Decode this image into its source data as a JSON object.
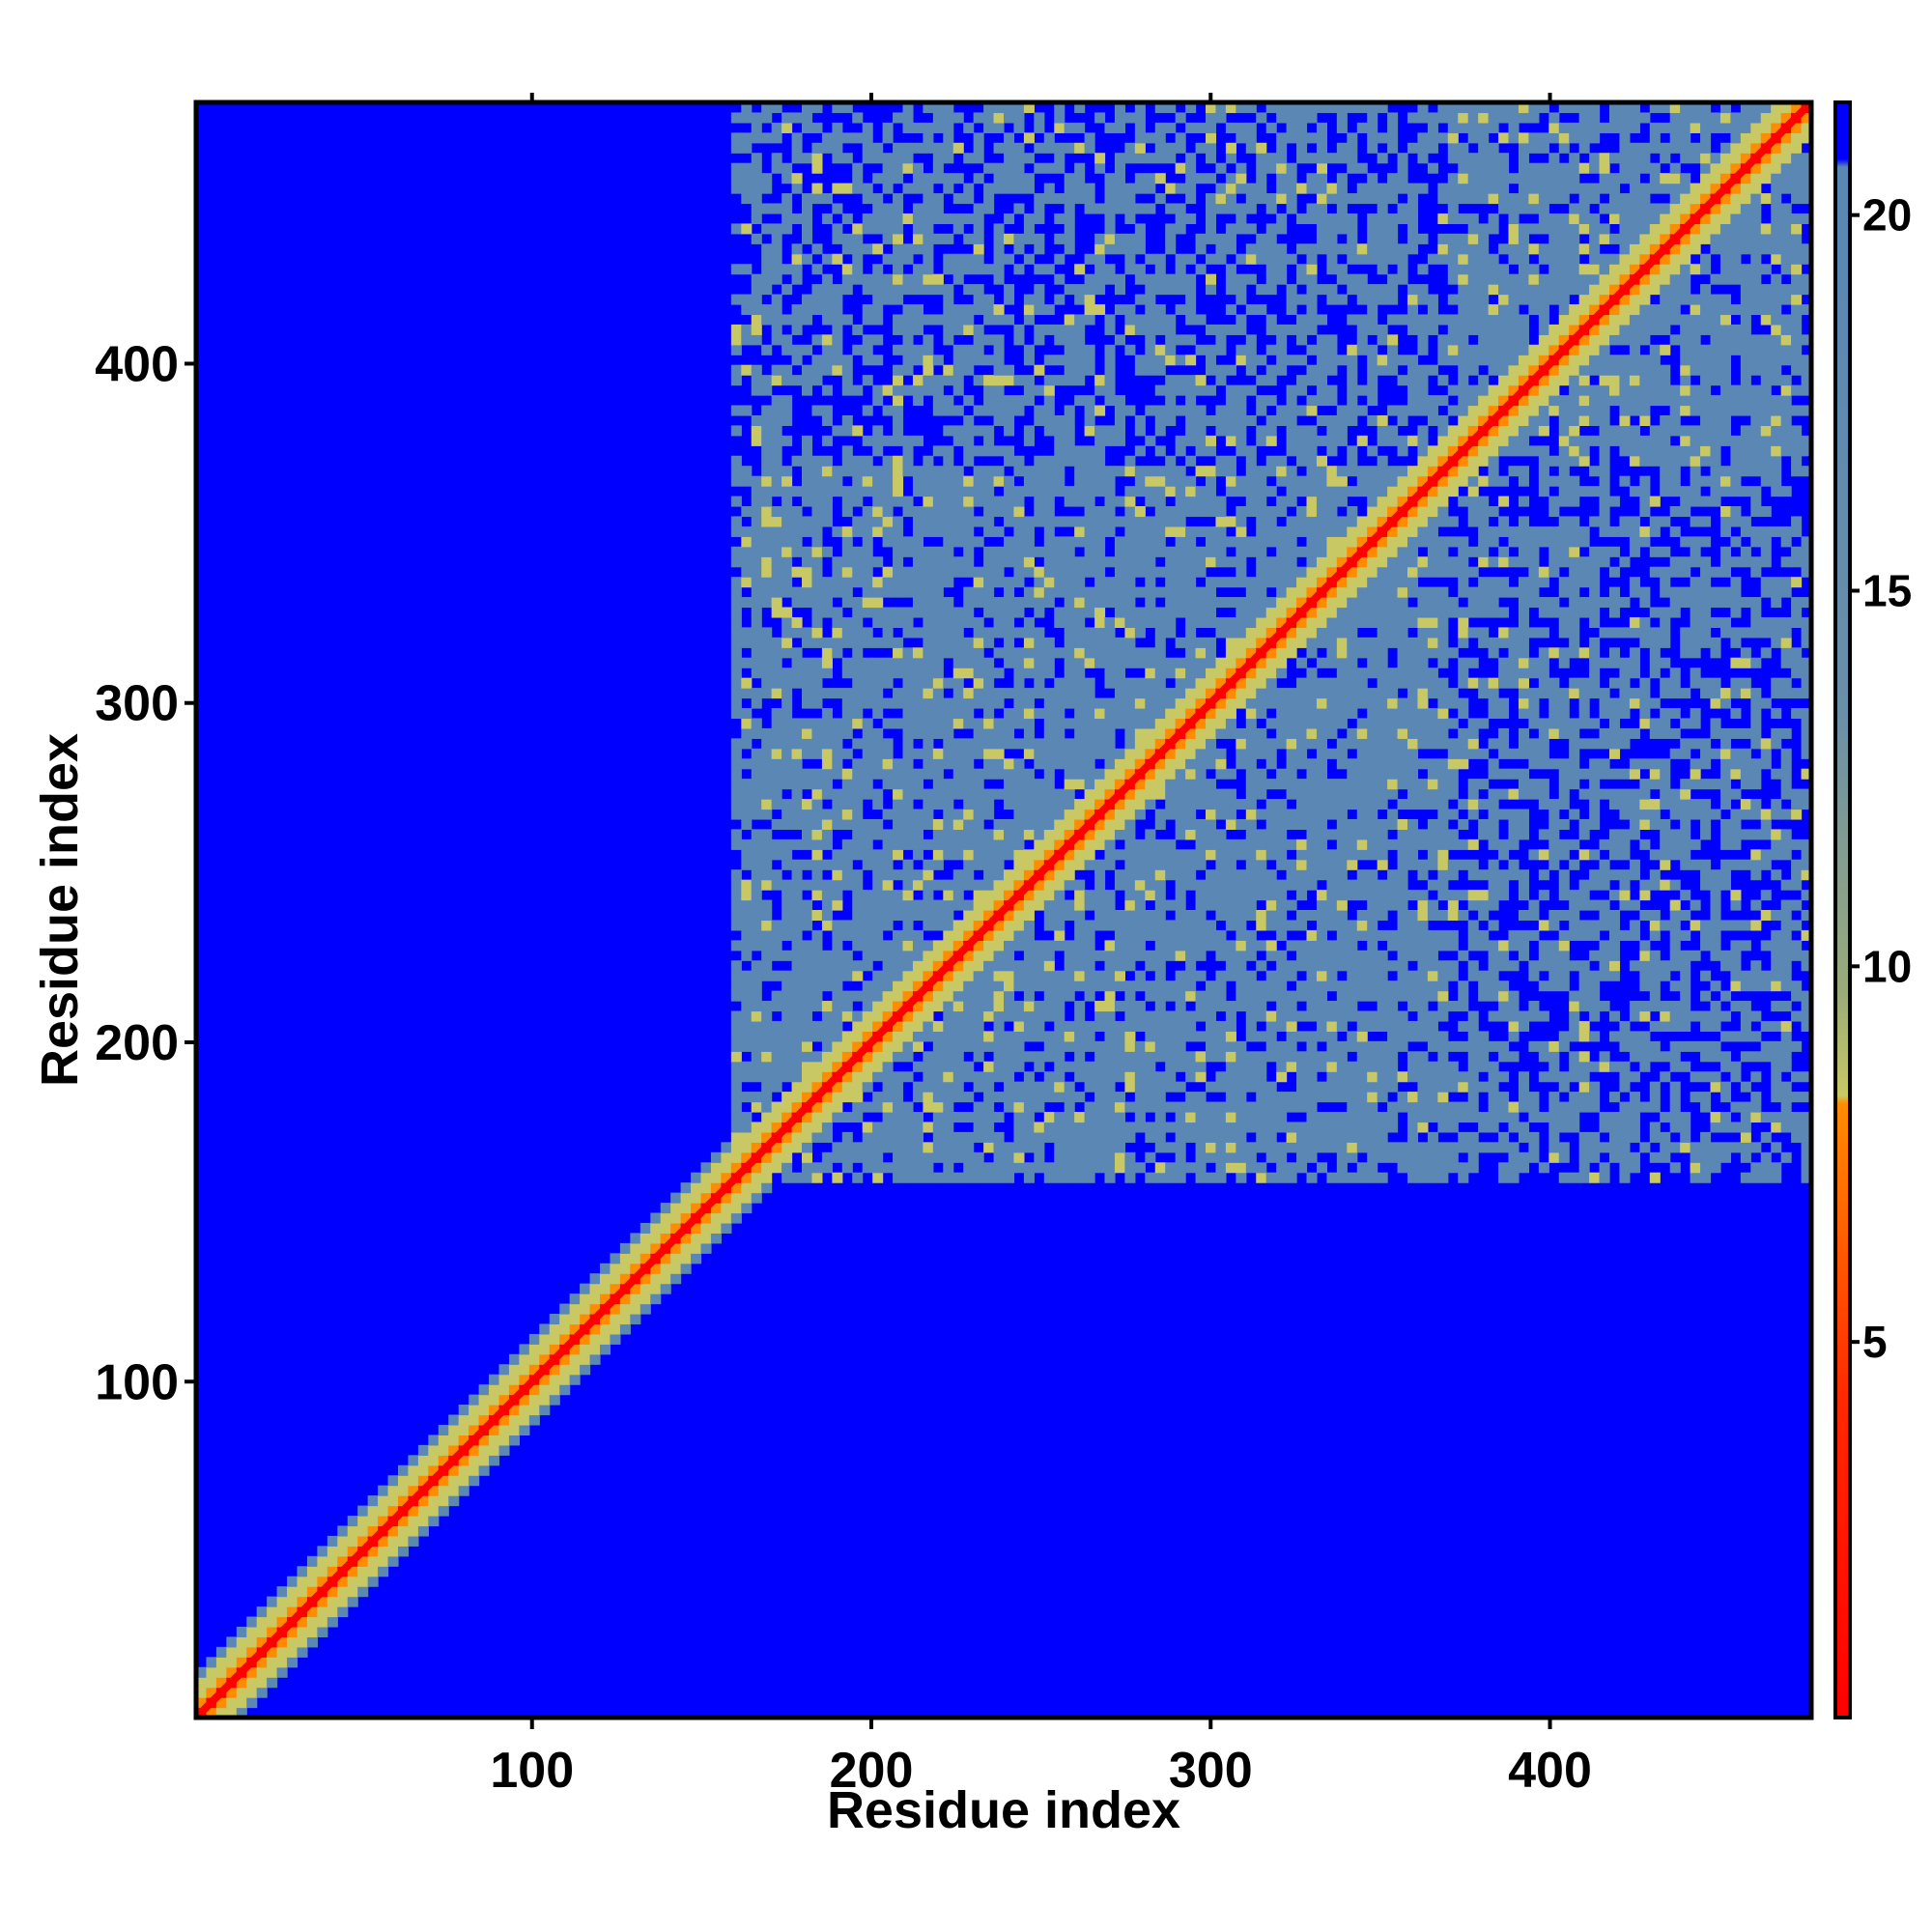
{
  "chart_data": {
    "type": "heatmap",
    "title": "",
    "xlabel": "Residue index",
    "ylabel": "Residue index",
    "xlim": [
      1,
      477
    ],
    "ylim": [
      1,
      477
    ],
    "x_ticks": [
      100,
      200,
      300,
      400
    ],
    "y_ticks": [
      100,
      200,
      300,
      400
    ],
    "colorbar": {
      "range": [
        0,
        21.5
      ],
      "ticks": [
        5,
        10,
        15,
        20
      ],
      "colors": {
        "very_close": "#ff0000",
        "close": "#ff8c00",
        "contact": "#c8c864",
        "medium": "#5a87b4",
        "far": "#0000ff"
      }
    },
    "diagonal_distance": 0,
    "regions": [
      {
        "x": [
          1,
          160
        ],
        "y": [
          1,
          160
        ],
        "profile": "near-diagonal only"
      },
      {
        "x": [
          160,
          477
        ],
        "y": [
          160,
          370
        ],
        "profile": "dense medium distances with contact bands"
      },
      {
        "x": [
          160,
          477
        ],
        "y": [
          370,
          477
        ],
        "profile": "medium distances with far patches"
      }
    ]
  }
}
